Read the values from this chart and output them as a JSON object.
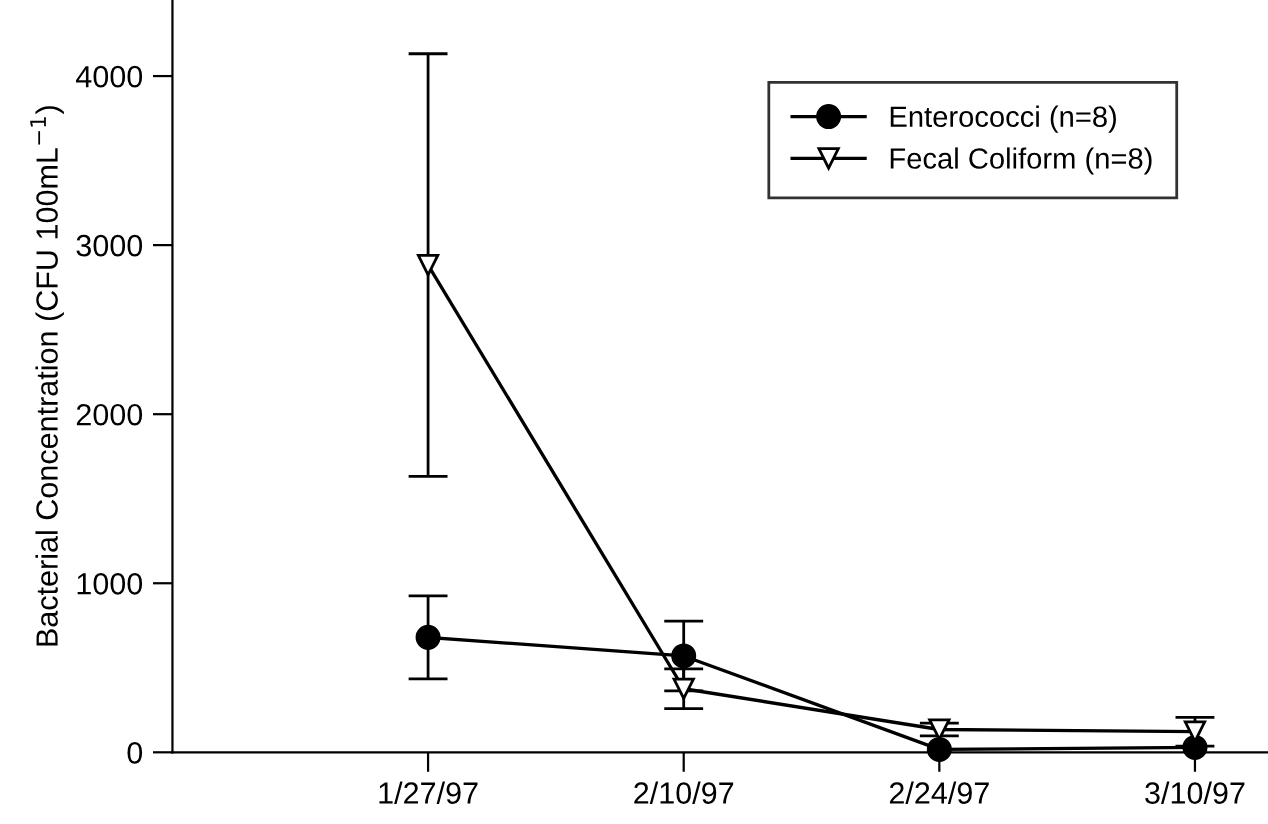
{
  "chart_data": {
    "type": "line",
    "ylabel": "Bacterial Concentration (CFU 100mL$^{−1}$)",
    "x": [
      "1997-01-27",
      "1997-02-10",
      "1997-02-24",
      "1997-03-10"
    ],
    "xlim": [
      "1997-01-13",
      "1997-03-14"
    ],
    "xticks": [
      {
        "value": "1997-01-27",
        "label": "1/27/97"
      },
      {
        "value": "1997-02-10",
        "label": "2/10/97"
      },
      {
        "value": "1997-02-24",
        "label": "2/24/97"
      },
      {
        "value": "1997-03-10",
        "label": "3/10/97"
      }
    ],
    "ylim": [
      0,
      4450
    ],
    "yticks": [
      0,
      1000,
      2000,
      3000,
      4000
    ],
    "legend": "top right",
    "grid": false,
    "line_style": "solid",
    "series": [
      {
        "name": "Enterococci (n=8)",
        "color": "#000000",
        "marker": "circle",
        "values": [
          680,
          570,
          17,
          29
        ],
        "errors": [
          245,
          206,
          null,
          null
        ]
      },
      {
        "name": "Fecal Coliform (n=8)",
        "color": "#000000",
        "marker": "triangle",
        "values": [
          2882,
          376,
          135,
          122
        ],
        "errors": [
          1250,
          118,
          38,
          85
        ]
      }
    ]
  }
}
